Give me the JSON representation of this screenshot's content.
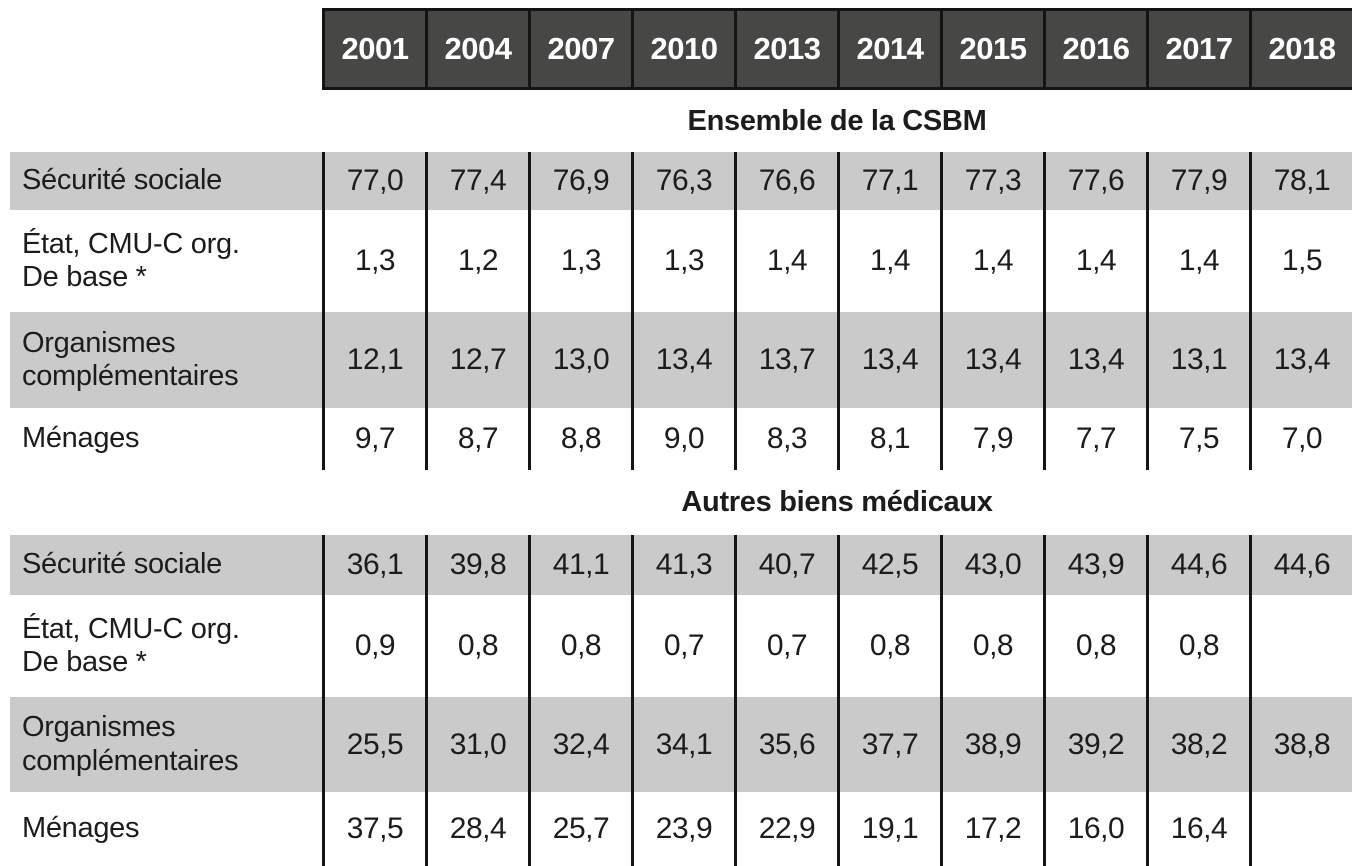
{
  "colors": {
    "header_bg": "#474745",
    "header_text": "#ffffff",
    "row_shaded_bg": "#cacaca",
    "grid_line": "#161616",
    "text": "#1c1c1c"
  },
  "table": {
    "years": [
      "2001",
      "2004",
      "2007",
      "2010",
      "2013",
      "2014",
      "2015",
      "2016",
      "2017",
      "2018"
    ],
    "sections": [
      {
        "title": "Ensemble de la CSBM",
        "rows": [
          {
            "label": "Sécurité sociale",
            "values": [
              "77,0",
              "77,4",
              "76,9",
              "76,3",
              "76,6",
              "77,1",
              "77,3",
              "77,6",
              "77,9",
              "78,1"
            ]
          },
          {
            "label": "État, CMU-C org.\nDe base *",
            "values": [
              "1,3",
              "1,2",
              "1,3",
              "1,3",
              "1,4",
              "1,4",
              "1,4",
              "1,4",
              "1,4",
              "1,5"
            ]
          },
          {
            "label": "Organismes\ncomplémentaires",
            "values": [
              "12,1",
              "12,7",
              "13,0",
              "13,4",
              "13,7",
              "13,4",
              "13,4",
              "13,4",
              "13,1",
              "13,4"
            ]
          },
          {
            "label": "Ménages",
            "values": [
              "9,7",
              "8,7",
              "8,8",
              "9,0",
              "8,3",
              "8,1",
              "7,9",
              "7,7",
              "7,5",
              "7,0"
            ]
          }
        ]
      },
      {
        "title": "Autres biens médicaux",
        "rows": [
          {
            "label": "Sécurité sociale",
            "values": [
              "36,1",
              "39,8",
              "41,1",
              "41,3",
              "40,7",
              "42,5",
              "43,0",
              "43,9",
              "44,6",
              "44,6"
            ]
          },
          {
            "label": "État, CMU-C org.\nDe base *",
            "values": [
              "0,9",
              "0,8",
              "0,8",
              "0,7",
              "0,7",
              "0,8",
              "0,8",
              "0,8",
              "0,8",
              ""
            ]
          },
          {
            "label": "Organismes\ncomplémentaires",
            "values": [
              "25,5",
              "31,0",
              "32,4",
              "34,1",
              "35,6",
              "37,7",
              "38,9",
              "39,2",
              "38,2",
              "38,8"
            ]
          },
          {
            "label": "Ménages",
            "values": [
              "37,5",
              "28,4",
              "25,7",
              "23,9",
              "22,9",
              "19,1",
              "17,2",
              "16,0",
              "16,4",
              ""
            ]
          }
        ]
      }
    ]
  },
  "chart_data": {
    "type": "table",
    "title": "",
    "categories": [
      "2001",
      "2004",
      "2007",
      "2010",
      "2013",
      "2014",
      "2015",
      "2016",
      "2017",
      "2018"
    ],
    "sections": [
      {
        "title": "Ensemble de la CSBM",
        "series": [
          {
            "name": "Sécurité sociale",
            "values": [
              77.0,
              77.4,
              76.9,
              76.3,
              76.6,
              77.1,
              77.3,
              77.6,
              77.9,
              78.1
            ]
          },
          {
            "name": "État, CMU-C org. De base *",
            "values": [
              1.3,
              1.2,
              1.3,
              1.3,
              1.4,
              1.4,
              1.4,
              1.4,
              1.4,
              1.5
            ]
          },
          {
            "name": "Organismes complémentaires",
            "values": [
              12.1,
              12.7,
              13.0,
              13.4,
              13.7,
              13.4,
              13.4,
              13.4,
              13.1,
              13.4
            ]
          },
          {
            "name": "Ménages",
            "values": [
              9.7,
              8.7,
              8.8,
              9.0,
              8.3,
              8.1,
              7.9,
              7.7,
              7.5,
              7.0
            ]
          }
        ]
      },
      {
        "title": "Autres biens médicaux",
        "series": [
          {
            "name": "Sécurité sociale",
            "values": [
              36.1,
              39.8,
              41.1,
              41.3,
              40.7,
              42.5,
              43.0,
              43.9,
              44.6,
              44.6
            ]
          },
          {
            "name": "État, CMU-C org. De base *",
            "values": [
              0.9,
              0.8,
              0.8,
              0.7,
              0.7,
              0.8,
              0.8,
              0.8,
              0.8,
              null
            ]
          },
          {
            "name": "Organismes complémentaires",
            "values": [
              25.5,
              31.0,
              32.4,
              34.1,
              35.6,
              37.7,
              38.9,
              39.2,
              38.2,
              38.8
            ]
          },
          {
            "name": "Ménages",
            "values": [
              37.5,
              28.4,
              25.7,
              23.9,
              22.9,
              19.1,
              17.2,
              16.0,
              16.4,
              null
            ]
          }
        ]
      }
    ]
  }
}
